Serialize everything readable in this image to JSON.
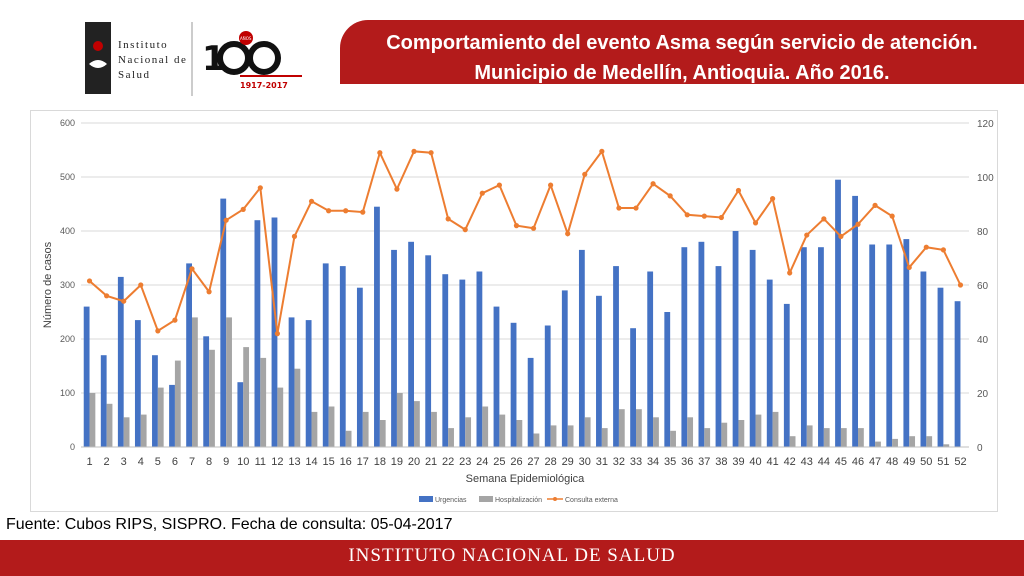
{
  "header": {
    "logo_line1": "Instituto",
    "logo_line2": "Nacional de",
    "logo_line3": "Salud",
    "badge_years": "1917-2017",
    "badge_text": "AÑOS",
    "title_line1": "Comportamiento del evento Asma según servicio de atención.",
    "title_line2": "Municipio de Medellín, Antioquia. Año 2016."
  },
  "source_note": "Fuente: Cubos RIPS, SISPRO. Fecha de consulta: 05-04-2017",
  "footer": {
    "text": "INSTITUTO NACIONAL DE SALUD"
  },
  "colors": {
    "brand_red": "#b31b1b",
    "urgencias": "#4472c4",
    "hospitalizacion": "#a5a5a5",
    "consulta": "#ed7d31"
  },
  "chart_data": {
    "type": "bar",
    "xlabel": "Semana Epidemiológica",
    "ylabel": "Número de casos",
    "ylim": [
      0,
      600
    ],
    "y2lim": [
      0,
      120
    ],
    "yticks": [
      0,
      100,
      200,
      300,
      400,
      500,
      600
    ],
    "y2ticks": [
      0,
      20,
      40,
      60,
      80,
      100,
      120
    ],
    "grid": true,
    "legend_position": "bottom",
    "categories": [
      "1",
      "2",
      "3",
      "4",
      "5",
      "6",
      "7",
      "8",
      "9",
      "10",
      "11",
      "12",
      "13",
      "14",
      "15",
      "16",
      "17",
      "18",
      "19",
      "20",
      "21",
      "22",
      "23",
      "24",
      "25",
      "26",
      "27",
      "28",
      "29",
      "30",
      "31",
      "32",
      "33",
      "34",
      "35",
      "36",
      "37",
      "38",
      "39",
      "40",
      "41",
      "42",
      "43",
      "44",
      "45",
      "46",
      "47",
      "48",
      "49",
      "50",
      "51",
      "52"
    ],
    "series": [
      {
        "name": "Urgencias",
        "type": "bar",
        "axis": "left",
        "values": [
          260,
          170,
          315,
          235,
          170,
          115,
          340,
          205,
          460,
          120,
          420,
          425,
          240,
          235,
          340,
          335,
          295,
          445,
          365,
          380,
          355,
          320,
          310,
          325,
          260,
          230,
          165,
          225,
          290,
          365,
          280,
          335,
          220,
          325,
          250,
          370,
          380,
          335,
          400,
          365,
          310,
          265,
          370,
          370,
          495,
          465,
          375,
          375,
          385,
          325,
          295,
          270
        ]
      },
      {
        "name": "Hospitalización",
        "type": "bar",
        "axis": "left",
        "values": [
          100,
          80,
          55,
          60,
          110,
          160,
          240,
          180,
          240,
          185,
          165,
          110,
          145,
          65,
          75,
          30,
          65,
          50,
          100,
          85,
          65,
          35,
          55,
          75,
          60,
          50,
          25,
          40,
          40,
          55,
          35,
          70,
          70,
          55,
          30,
          55,
          35,
          45,
          50,
          60,
          65,
          20,
          40,
          35,
          35,
          35,
          10,
          15,
          20,
          20,
          5,
          0
        ]
      },
      {
        "name": "Consulta externa",
        "type": "line",
        "axis": "right",
        "values": [
          61.5,
          56,
          54,
          60,
          43,
          47,
          66,
          57.5,
          84,
          88,
          96,
          42,
          78,
          91,
          87.5,
          87.5,
          87,
          109,
          95.5,
          109.5,
          109,
          84.5,
          80.5,
          94,
          97,
          82,
          81,
          97,
          79,
          101,
          109.5,
          88.5,
          88.5,
          97.5,
          93,
          86,
          85.5,
          85,
          95,
          83,
          92,
          64.5,
          78.5,
          84.5,
          78,
          82.5,
          89.5,
          85.5,
          66.5,
          74,
          73,
          60
        ]
      }
    ]
  }
}
